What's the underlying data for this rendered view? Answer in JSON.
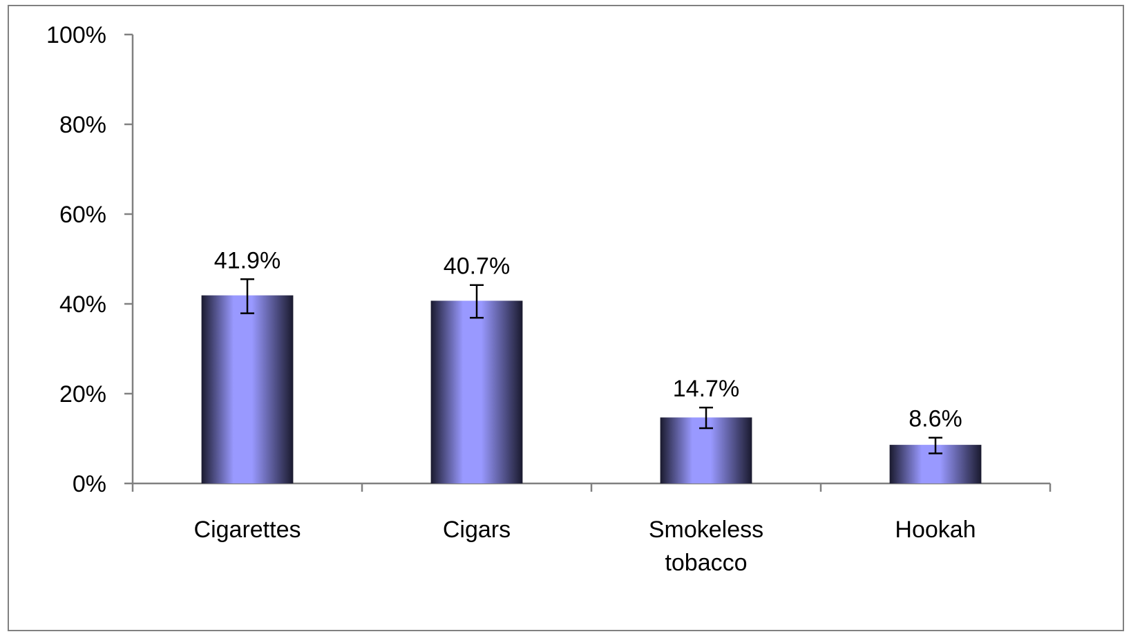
{
  "chart_data": {
    "type": "bar",
    "title": "",
    "xlabel": "",
    "ylabel": "",
    "categories": [
      [
        "Cigarettes"
      ],
      [
        "Cigars"
      ],
      [
        "Smokeless",
        "tobacco"
      ],
      [
        "Hookah"
      ]
    ],
    "values": [
      41.9,
      40.7,
      14.7,
      8.6
    ],
    "error_bars": [
      {
        "low": 37.9,
        "high": 45.5
      },
      {
        "low": 36.9,
        "high": 44.2
      },
      {
        "low": 12.3,
        "high": 16.9
      },
      {
        "low": 6.7,
        "high": 10.2
      }
    ],
    "data_labels": [
      "41.9%",
      "40.7%",
      "14.7%",
      "8.6%"
    ],
    "ylim": [
      0,
      100
    ],
    "yticks": [
      0,
      20,
      40,
      60,
      80,
      100
    ],
    "ytick_labels": [
      "0%",
      "20%",
      "40%",
      "60%",
      "80%",
      "100%"
    ],
    "grid": false,
    "legend": "none",
    "colors": {
      "bar_center": "#9999ff",
      "bar_edge": "#1a1a2e",
      "axis": "#808080",
      "frame": "#808080",
      "error_bar": "#000000"
    }
  }
}
